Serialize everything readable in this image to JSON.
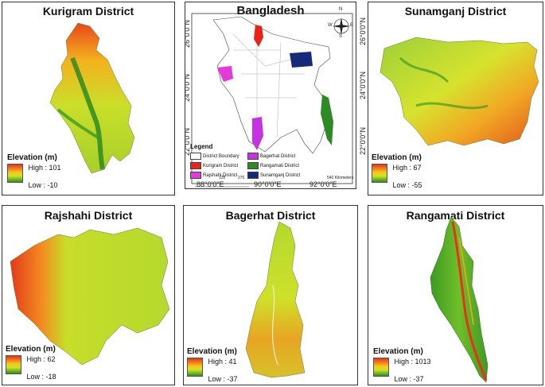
{
  "panels": {
    "kurigram": {
      "title": "Kurigram District",
      "elev_title": "Elevation (m)",
      "high": "High : 101",
      "low": "Low : -10"
    },
    "bangladesh": {
      "title": "Bangladesh",
      "lat_labels": [
        "26°0'0\"N",
        "24°0'0\"N",
        "22°0'0\"N"
      ],
      "lon_labels": [
        "88°0'0\"E",
        "90°0'0\"E",
        "92°0'0\"E"
      ],
      "scale_labels": [
        "0",
        "135",
        "270",
        "540 Kilometers"
      ],
      "compass": [
        "N",
        "S",
        "E",
        "W"
      ],
      "legend_title": "Legend",
      "legend": [
        {
          "label": "District Boundary",
          "color": "#ffffff"
        },
        {
          "label": "Kurigram District",
          "color": "#e8231a"
        },
        {
          "label": "Rajshahi District",
          "color": "#e53ad8"
        },
        {
          "label": "Bagerhat District",
          "color": "#c534e0"
        },
        {
          "label": "Rangamati District",
          "color": "#2e8a24"
        },
        {
          "label": "Sunamganj District",
          "color": "#162a7a"
        }
      ]
    },
    "sunamganj": {
      "title": "Sunamganj District",
      "elev_title": "Elevation (m)",
      "high": "High : 67",
      "low": "Low : -55",
      "lat_labels": [
        "26°0'0\"N",
        "24°0'0\"N",
        "22°0'0\"N"
      ]
    },
    "rajshahi": {
      "title": "Rajshahi District",
      "elev_title": "Elevation (m)",
      "high": "High : 62",
      "low": "Low : -18"
    },
    "bagerhat": {
      "title": "Bagerhat District",
      "elev_title": "Elevation (m)",
      "high": "High : 41",
      "low": "Low : -37"
    },
    "rangamati": {
      "title": "Rangamati District",
      "elev_title": "Elevation (m)",
      "high": "High : 1013",
      "low": "Low : -37"
    }
  }
}
